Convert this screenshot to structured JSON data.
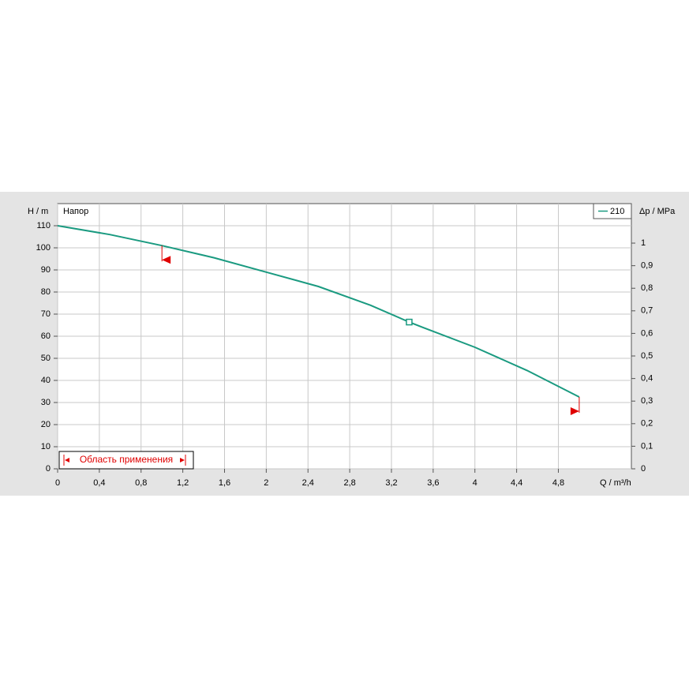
{
  "chart_data": {
    "type": "line",
    "subtitle": "Напор",
    "y_label": "H / m",
    "y2_label": "Δp / MPa",
    "x_label": "Q / m³/h",
    "range_label": "Область применения",
    "xlim": [
      0,
      5.5
    ],
    "ylim": [
      0,
      120
    ],
    "y2lim": [
      0,
      1.175
    ],
    "xticks": [
      0,
      {
        "value": 0.4,
        "label": "0,4"
      },
      {
        "value": 0.8,
        "label": "0,8"
      },
      {
        "value": 1.2,
        "label": "1,2"
      },
      {
        "value": 1.6,
        "label": "1,6"
      },
      2,
      {
        "value": 2.4,
        "label": "2,4"
      },
      {
        "value": 2.8,
        "label": "2,8"
      },
      {
        "value": 3.2,
        "label": "3,2"
      },
      {
        "value": 3.6,
        "label": "3,6"
      },
      4,
      {
        "value": 4.4,
        "label": "4,4"
      },
      {
        "value": 4.8,
        "label": "4,8"
      }
    ],
    "yticks": [
      0,
      10,
      20,
      30,
      40,
      50,
      60,
      70,
      80,
      90,
      100,
      110
    ],
    "y2ticks": [
      0,
      {
        "value": 0.1,
        "label": "0,1"
      },
      {
        "value": 0.2,
        "label": "0,2"
      },
      {
        "value": 0.3,
        "label": "0,3"
      },
      {
        "value": 0.4,
        "label": "0,4"
      },
      {
        "value": 0.5,
        "label": "0,5"
      },
      {
        "value": 0.6,
        "label": "0,6"
      },
      {
        "value": 0.7,
        "label": "0,7"
      },
      {
        "value": 0.8,
        "label": "0,8"
      },
      {
        "value": 0.9,
        "label": "0,9"
      },
      1
    ],
    "grid": true,
    "legend_position": "top-right",
    "series": [
      {
        "name": "210",
        "color": "#1a9a80",
        "x": [
          0,
          0.5,
          1,
          1.5,
          2,
          2.5,
          3,
          3.37,
          3.5,
          4,
          4.5,
          5
        ],
        "values": [
          110,
          106,
          101,
          95.5,
          89,
          82.5,
          74,
          66.4,
          64,
          55,
          44.5,
          32.5
        ]
      }
    ],
    "duty_point": {
      "x": 3.37,
      "y": 66.4
    },
    "range": {
      "min": 1,
      "max": 5
    },
    "range_color": "#e00000"
  }
}
